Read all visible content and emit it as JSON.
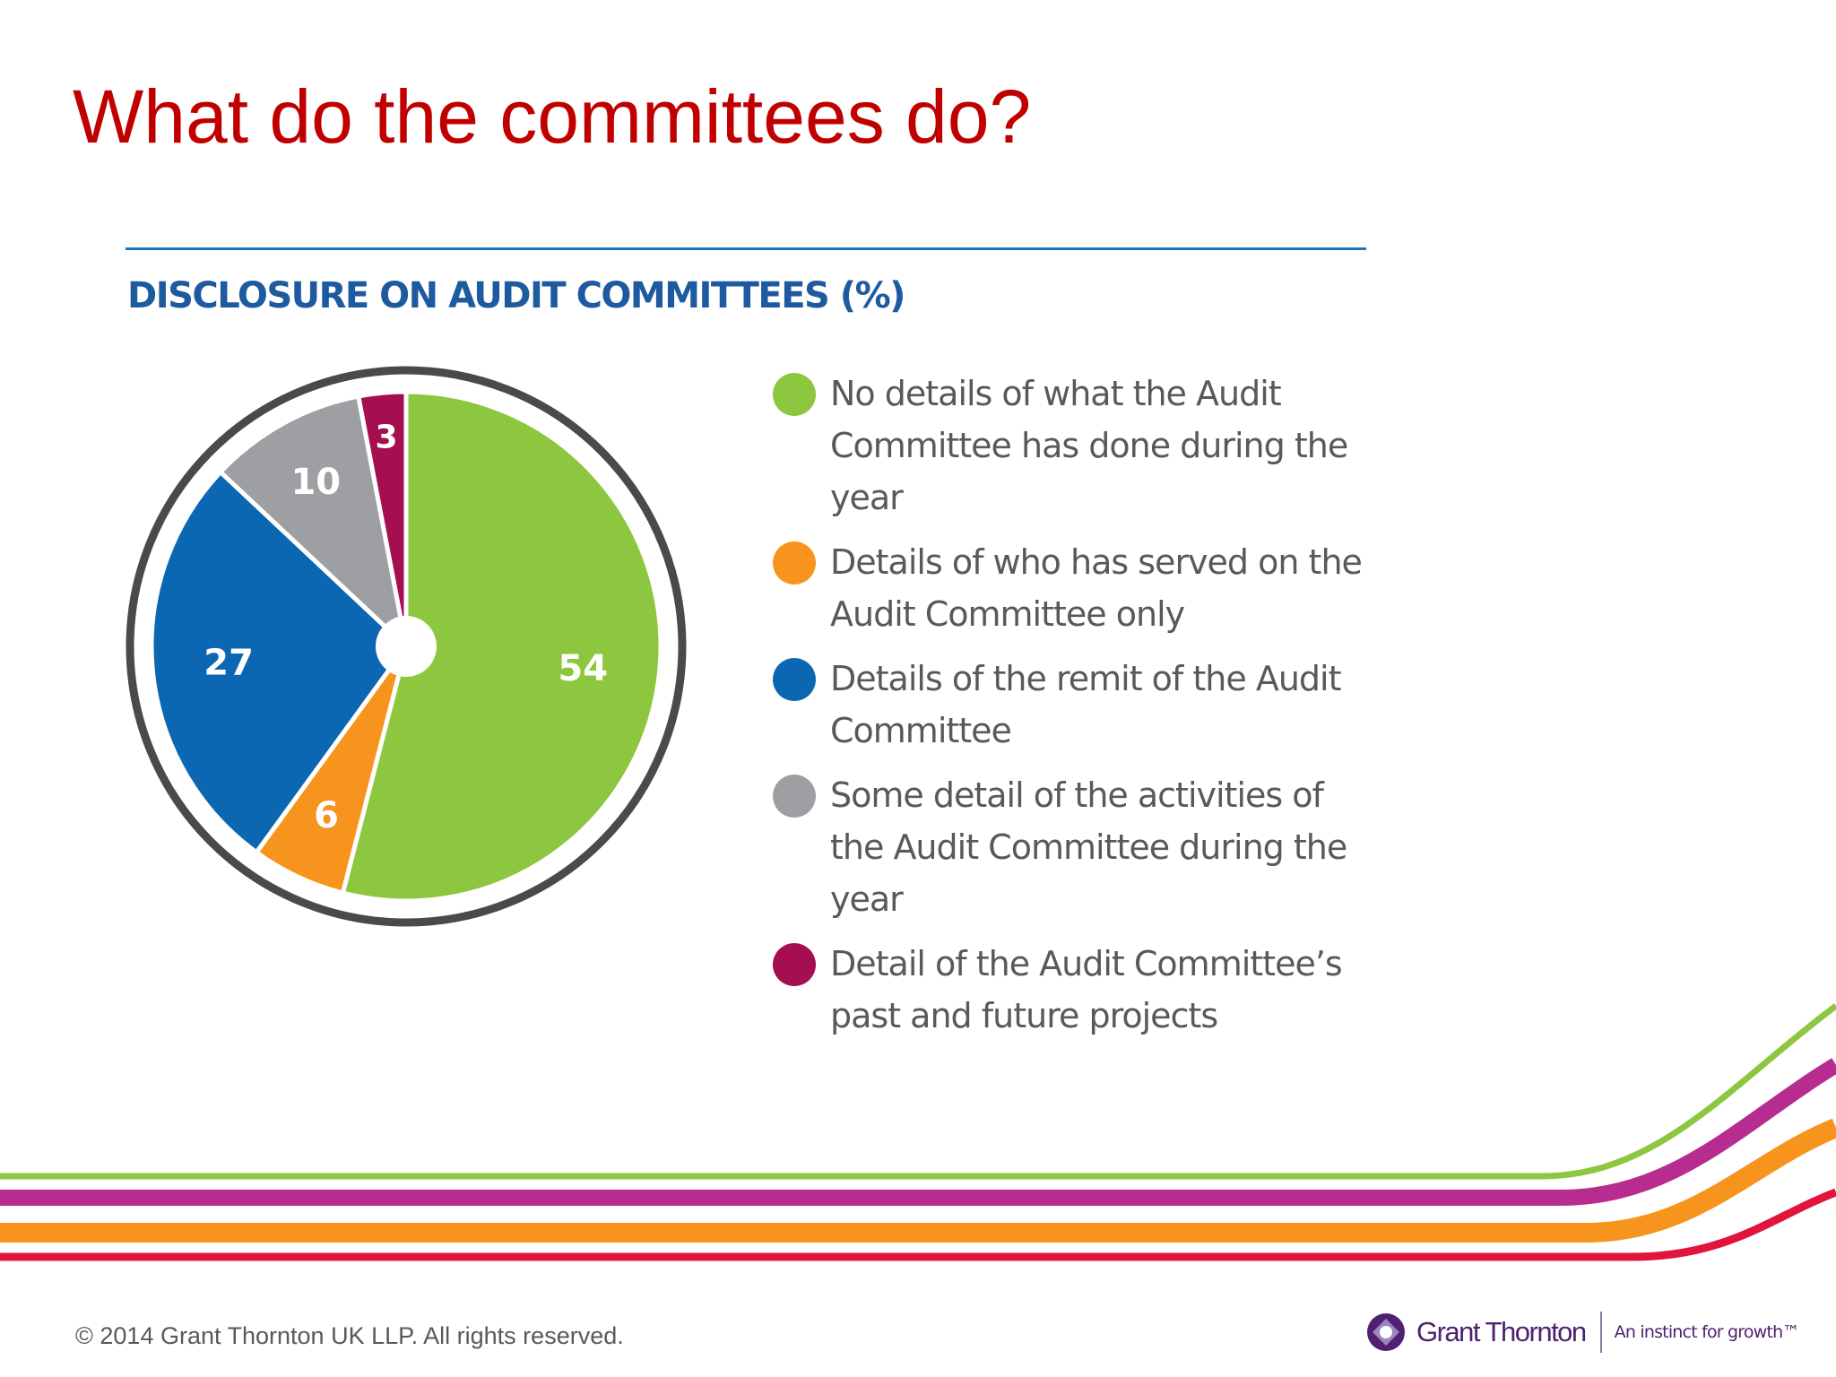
{
  "slide": {
    "title": "What do the committees do?"
  },
  "chart_data": {
    "type": "pie",
    "title": "DISCLOSURE ON AUDIT COMMITTEES (%)",
    "slices": [
      {
        "label": "No details of what the Audit Committee has done during the year",
        "value": 54,
        "value_label": "54",
        "color": "#8dc63f"
      },
      {
        "label": "Details of who has served on the Audit Committee only",
        "value": 6,
        "value_label": "6",
        "color": "#f7941d"
      },
      {
        "label": "Details of the remit of the Audit Committee",
        "value": 27,
        "value_label": "27",
        "color": "#0b67b2"
      },
      {
        "label": "Some detail of the activities of the Audit Committee during the year",
        "value": 10,
        "value_label": "10",
        "color": "#9d9fa2"
      },
      {
        "label": "Detail of the Audit Committee’s past and future projects",
        "value": 3,
        "value_label": "3",
        "color": "#a50f4f"
      }
    ],
    "legend_position": "right"
  },
  "footer": {
    "copyright": "© 2014 Grant Thornton UK LLP. All rights reserved.",
    "logo_name": "Grant Thornton",
    "logo_tagline": "An instinct for growth™"
  },
  "colors": {
    "title": "#c00000",
    "chart_heading": "#1e5aa0",
    "stripes": [
      "#8dc63f",
      "#b72c8f",
      "#f7941d",
      "#e2133c"
    ]
  }
}
